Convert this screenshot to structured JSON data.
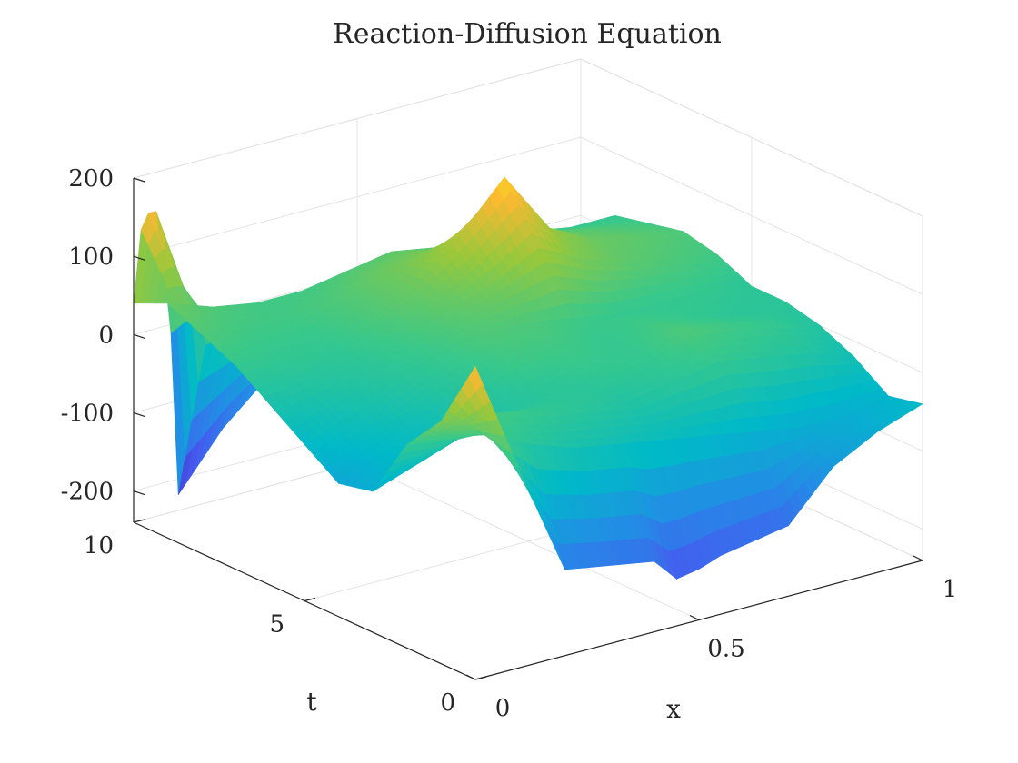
{
  "chart_data": {
    "type": "surface",
    "title": "Reaction-Diffusion Equation",
    "xlabel": "x",
    "ylabel": "t",
    "zlabel": "",
    "xlim": [
      0,
      1
    ],
    "ylim": [
      0,
      10
    ],
    "zlim": [
      -240,
      200
    ],
    "x_ticks": [
      {
        "v": 0,
        "label": "0"
      },
      {
        "v": 0.5,
        "label": "0.5"
      },
      {
        "v": 1,
        "label": "1"
      }
    ],
    "y_ticks": [
      {
        "v": 0,
        "label": "0"
      },
      {
        "v": 5,
        "label": "5"
      },
      {
        "v": 10,
        "label": "10"
      }
    ],
    "z_ticks": [
      {
        "v": -200,
        "label": "-200"
      },
      {
        "v": -100,
        "label": "-100"
      },
      {
        "v": 0,
        "label": "0"
      },
      {
        "v": 100,
        "label": "100"
      },
      {
        "v": 200,
        "label": "200"
      }
    ],
    "grid": true,
    "colormap": "parula",
    "view": "3d-isometric",
    "surface_rows": [
      {
        "t": 0,
        "x": [
          0,
          0.1,
          0.2,
          0.3,
          0.4,
          0.45,
          0.5,
          0.55,
          0.6,
          0.7,
          0.8,
          0.9,
          1.0
        ],
        "u": [
          160,
          10,
          -130,
          -140,
          -150,
          -180,
          -175,
          -165,
          -160,
          -150,
          -90,
          -60,
          -40
        ]
      },
      {
        "t": 1,
        "x": [
          0,
          0.1,
          0.2,
          0.3,
          0.4,
          0.5,
          0.6,
          0.7,
          0.8,
          0.9,
          1.0
        ],
        "u": [
          70,
          40,
          10,
          -10,
          -20,
          -30,
          -40,
          -50,
          -60,
          -60,
          -50
        ]
      },
      {
        "t": 2,
        "x": [
          0,
          0.1,
          0.2,
          0.3,
          0.4,
          0.5,
          0.6,
          0.7,
          0.8,
          0.9,
          1.0
        ],
        "u": [
          20,
          10,
          30,
          20,
          10,
          0,
          10,
          20,
          10,
          0,
          -20
        ]
      },
      {
        "t": 3,
        "x": [
          0,
          0.1,
          0.2,
          0.3,
          0.4,
          0.5,
          0.6,
          0.7,
          0.8,
          0.9,
          1.0
        ],
        "u": [
          -60,
          -40,
          -20,
          0,
          10,
          20,
          20,
          40,
          30,
          20,
          0
        ]
      },
      {
        "t": 4,
        "x": [
          0,
          0.1,
          0.2,
          0.3,
          0.4,
          0.5,
          0.6,
          0.7,
          0.8,
          0.9,
          1.0
        ],
        "u": [
          -70,
          -40,
          -20,
          10,
          30,
          30,
          20,
          30,
          20,
          10,
          10
        ]
      },
      {
        "t": 5,
        "x": [
          0,
          0.1,
          0.2,
          0.3,
          0.4,
          0.5,
          0.6,
          0.7,
          0.8,
          0.9,
          1.0
        ],
        "u": [
          -40,
          -20,
          0,
          20,
          40,
          40,
          30,
          20,
          20,
          20,
          10
        ]
      },
      {
        "t": 6,
        "x": [
          0,
          0.1,
          0.2,
          0.3,
          0.4,
          0.5,
          0.6,
          0.7,
          0.8,
          0.9,
          1.0
        ],
        "u": [
          -10,
          0,
          10,
          30,
          50,
          70,
          100,
          70,
          50,
          40,
          30
        ]
      },
      {
        "t": 7,
        "x": [
          0,
          0.1,
          0.2,
          0.3,
          0.4,
          0.5,
          0.6,
          0.7,
          0.8,
          0.9,
          1.0
        ],
        "u": [
          20,
          20,
          20,
          40,
          60,
          110,
          170,
          90,
          60,
          50,
          40
        ]
      },
      {
        "t": 8,
        "x": [
          0,
          0.1,
          0.2,
          0.3,
          0.4,
          0.5,
          0.6,
          0.7,
          0.8,
          0.9,
          1.0
        ],
        "u": [
          40,
          30,
          30,
          40,
          60,
          70,
          60,
          50,
          50,
          40,
          30
        ]
      },
      {
        "t": 9,
        "x": [
          0,
          0.1,
          0.2,
          0.3,
          0.4,
          0.5,
          0.6,
          0.7,
          0.8,
          0.9,
          1.0
        ],
        "u": [
          60,
          40,
          30,
          30,
          40,
          50,
          40,
          30,
          30,
          20,
          20
        ]
      },
      {
        "t": 10,
        "x": [
          0,
          0.02,
          0.05,
          0.08,
          0.1,
          0.2,
          0.3,
          0.4,
          0.5,
          0.6,
          0.7,
          0.8,
          0.9,
          1.0
        ],
        "u": [
          40,
          150,
          150,
          30,
          -220,
          -150,
          -100,
          -80,
          -60,
          -40,
          -30,
          -30,
          -40,
          -50
        ]
      }
    ]
  }
}
